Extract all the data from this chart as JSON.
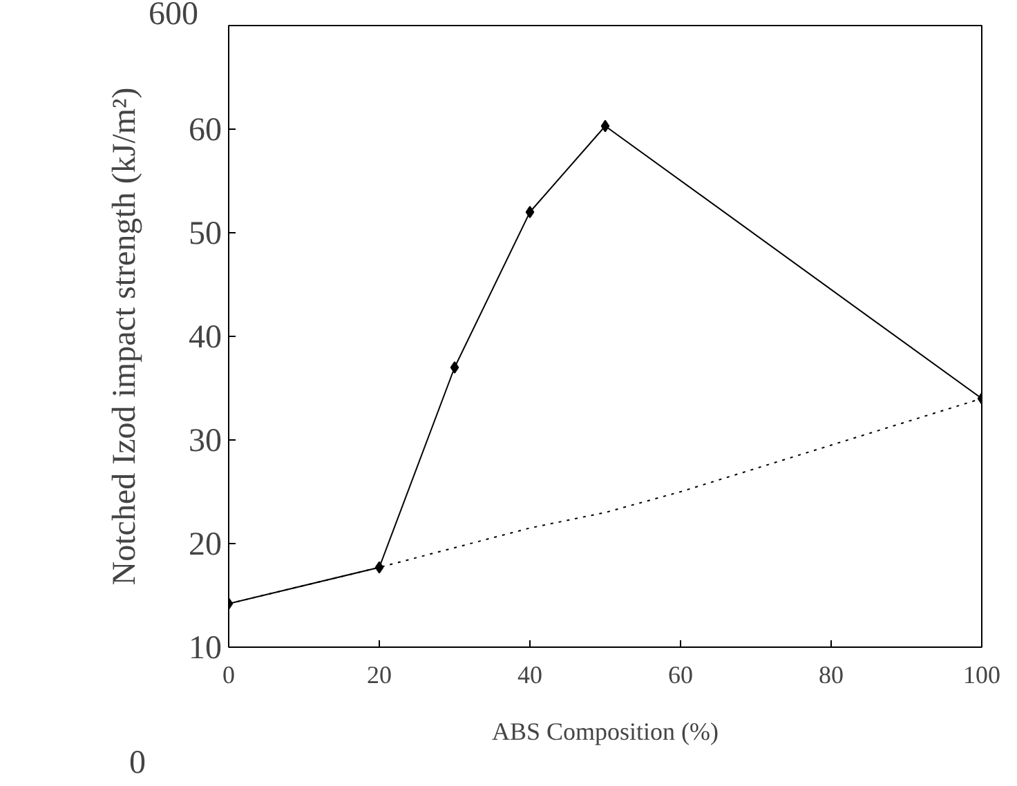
{
  "chart_data": {
    "type": "line",
    "xlabel": "ABS Composition (%)",
    "ylabel": "Notched Izod impact strength (kJ/m²)",
    "xlim": [
      0,
      100
    ],
    "xticks": [
      0,
      20,
      40,
      60,
      80,
      100
    ],
    "ylim": [
      10,
      70
    ],
    "yticks": [
      10,
      20,
      30,
      40,
      50,
      60
    ],
    "grid": false,
    "series": [
      {
        "color": "#000000",
        "x": [
          0,
          20,
          30,
          40,
          50,
          100
        ],
        "values": [
          14.2,
          17.7,
          37,
          52,
          60.3,
          34
        ],
        "marker": "diamond",
        "line_style": "solid"
      },
      {
        "color": "#000000",
        "x": [
          0,
          20,
          40,
          50,
          60,
          80,
          100
        ],
        "values": [
          14.2,
          17.7,
          21.5,
          23,
          25,
          29.5,
          34
        ],
        "marker": "none",
        "line_style": "dotted"
      }
    ],
    "annotations": [
      "600",
      "0"
    ]
  }
}
